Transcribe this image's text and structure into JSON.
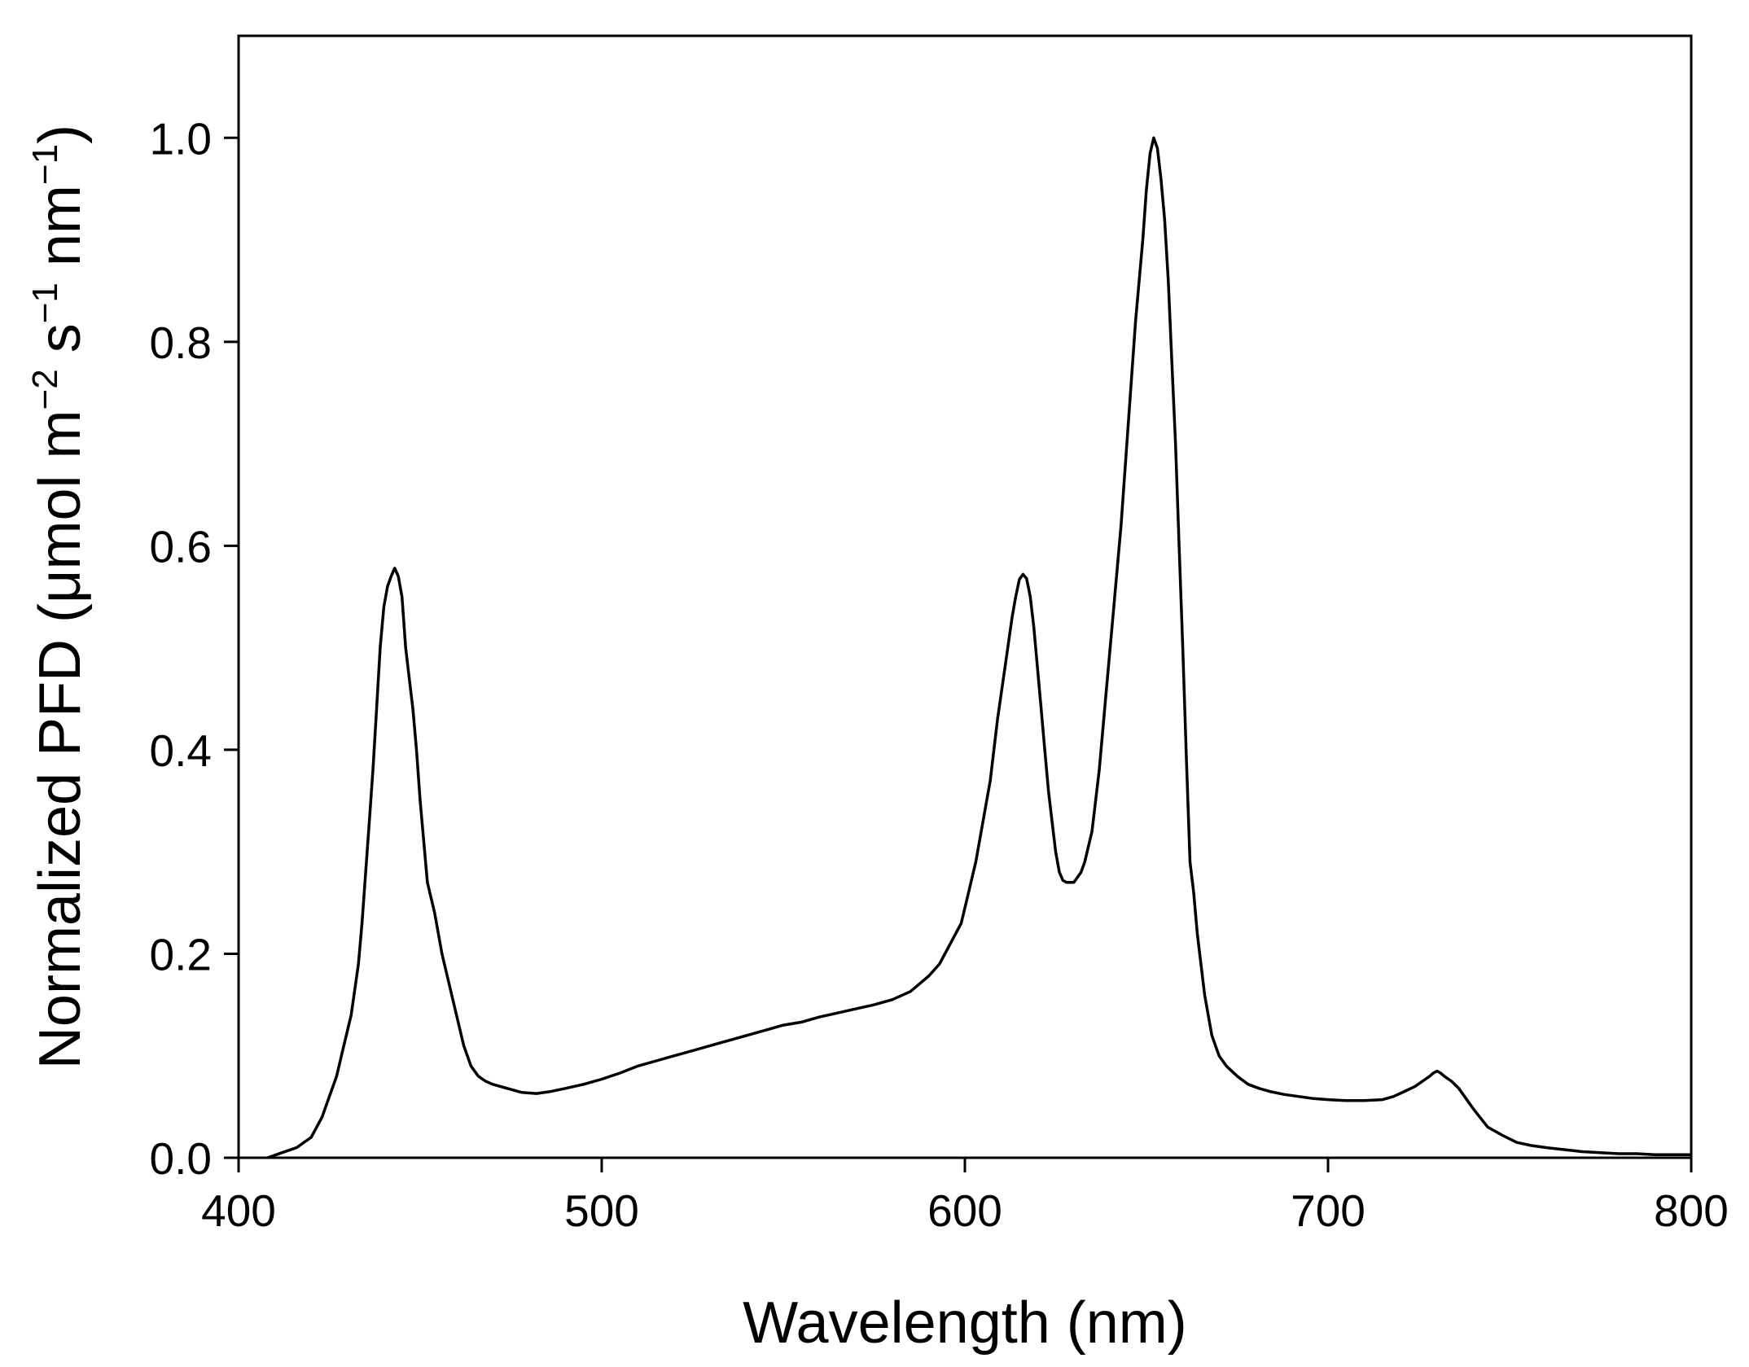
{
  "chart_data": {
    "type": "line",
    "title": "",
    "xlabel": "Wavelength (nm)",
    "ylabel_parts": [
      {
        "text": "Normalized PFD (μmol m",
        "sup": false
      },
      {
        "text": "−2",
        "sup": true
      },
      {
        "text": " s",
        "sup": false
      },
      {
        "text": "−1",
        "sup": true
      },
      {
        "text": " nm",
        "sup": false
      },
      {
        "text": "−1",
        "sup": true
      },
      {
        "text": ")",
        "sup": false
      }
    ],
    "xlim": [
      400,
      800
    ],
    "ylim": [
      0,
      1.1
    ],
    "xticks": [
      400,
      500,
      600,
      700,
      800
    ],
    "xtick_labels": [
      "400",
      "500",
      "600",
      "700",
      "800"
    ],
    "yticks": [
      0,
      0.2,
      0.4,
      0.6,
      0.8,
      1.0
    ],
    "ytick_labels": [
      "0.0",
      "0.2",
      "0.4",
      "0.6",
      "0.8",
      "1.0"
    ],
    "grid": false,
    "legend": "none",
    "line_color": "#000000",
    "series": [
      {
        "x": [
          408,
          412,
          416,
          420,
          423,
          425,
          427,
          429,
          431,
          433,
          434,
          435,
          436,
          437,
          438,
          439,
          440,
          441,
          442,
          443,
          444,
          445,
          446,
          447,
          448,
          449,
          450,
          452,
          454,
          456,
          458,
          460,
          462,
          464,
          466,
          468,
          470,
          474,
          478,
          482,
          486,
          490,
          495,
          500,
          505,
          510,
          515,
          520,
          525,
          530,
          535,
          540,
          545,
          550,
          555,
          560,
          565,
          570,
          575,
          580,
          585,
          590,
          593,
          596,
          599,
          601,
          603,
          605,
          607,
          609,
          611,
          613,
          614,
          615,
          616,
          617,
          618,
          619,
          620,
          621,
          622,
          623,
          624,
          625,
          626,
          627,
          628,
          629,
          630,
          631,
          632,
          633,
          635,
          637,
          639,
          641,
          643,
          645,
          647,
          649,
          650,
          651,
          652,
          653,
          654,
          655,
          656,
          657,
          658,
          659,
          660,
          661,
          662,
          663,
          664,
          665,
          666,
          667,
          668,
          669,
          670,
          672,
          675,
          678,
          681,
          684,
          688,
          692,
          696,
          700,
          705,
          710,
          715,
          718,
          721,
          724,
          726,
          728,
          729,
          730,
          731,
          732,
          734,
          736,
          738,
          740,
          744,
          748,
          752,
          756,
          760,
          765,
          770,
          775,
          780,
          785,
          790,
          795,
          800
        ],
        "y": [
          0.0,
          0.005,
          0.01,
          0.02,
          0.04,
          0.06,
          0.08,
          0.11,
          0.14,
          0.19,
          0.23,
          0.28,
          0.33,
          0.38,
          0.44,
          0.5,
          0.54,
          0.56,
          0.57,
          0.578,
          0.57,
          0.55,
          0.5,
          0.47,
          0.44,
          0.4,
          0.35,
          0.27,
          0.24,
          0.2,
          0.17,
          0.14,
          0.11,
          0.09,
          0.08,
          0.075,
          0.072,
          0.068,
          0.064,
          0.063,
          0.065,
          0.068,
          0.072,
          0.077,
          0.083,
          0.09,
          0.095,
          0.1,
          0.105,
          0.11,
          0.115,
          0.12,
          0.125,
          0.13,
          0.133,
          0.138,
          0.142,
          0.146,
          0.15,
          0.155,
          0.163,
          0.178,
          0.19,
          0.21,
          0.23,
          0.26,
          0.29,
          0.33,
          0.37,
          0.43,
          0.48,
          0.53,
          0.55,
          0.567,
          0.572,
          0.568,
          0.55,
          0.52,
          0.48,
          0.44,
          0.4,
          0.36,
          0.33,
          0.3,
          0.28,
          0.272,
          0.27,
          0.27,
          0.27,
          0.275,
          0.28,
          0.29,
          0.32,
          0.38,
          0.46,
          0.54,
          0.62,
          0.72,
          0.82,
          0.9,
          0.95,
          0.985,
          1.0,
          0.99,
          0.96,
          0.92,
          0.86,
          0.78,
          0.7,
          0.6,
          0.5,
          0.39,
          0.29,
          0.26,
          0.22,
          0.19,
          0.16,
          0.14,
          0.12,
          0.11,
          0.1,
          0.09,
          0.08,
          0.072,
          0.068,
          0.065,
          0.062,
          0.06,
          0.058,
          0.057,
          0.056,
          0.056,
          0.057,
          0.06,
          0.065,
          0.07,
          0.075,
          0.08,
          0.083,
          0.085,
          0.083,
          0.08,
          0.075,
          0.068,
          0.058,
          0.048,
          0.03,
          0.022,
          0.015,
          0.012,
          0.01,
          0.008,
          0.006,
          0.005,
          0.004,
          0.004,
          0.003,
          0.003,
          0.003
        ]
      }
    ]
  }
}
